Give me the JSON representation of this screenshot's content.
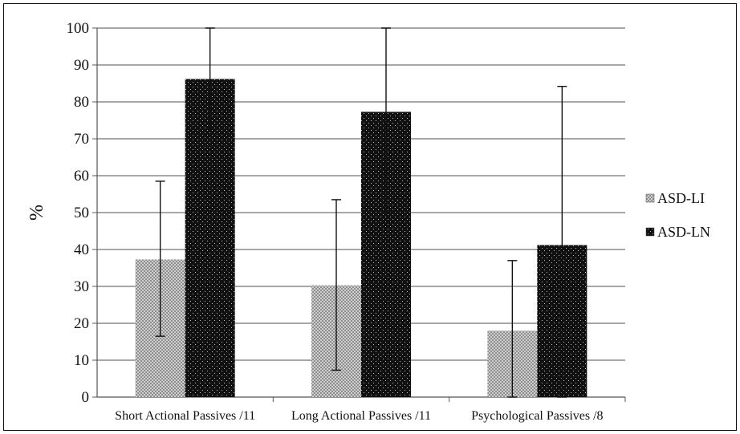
{
  "chart_data": {
    "type": "bar",
    "title": "",
    "xlabel": "",
    "ylabel": "%",
    "ylim": [
      0,
      100
    ],
    "yticks": [
      0,
      10,
      20,
      30,
      40,
      50,
      60,
      70,
      80,
      90,
      100
    ],
    "grid": true,
    "legend_position": "right",
    "categories": [
      "Short Actional Passives /11",
      "Long Actional Passives /11",
      "Psychological Passives /8"
    ],
    "series": [
      {
        "name": "ASD-LI",
        "color": "#9a9a9a",
        "values": [
          37.3,
          30.3,
          18.0
        ],
        "error_low": [
          16.5,
          7.3,
          0
        ],
        "error_high": [
          58.5,
          53.5,
          37.0
        ]
      },
      {
        "name": "ASD-LN",
        "color": "#111111",
        "values": [
          86.2,
          77.3,
          41.2
        ],
        "error_low": [
          72.0,
          50.0,
          0
        ],
        "error_high": [
          100,
          100,
          84.2
        ]
      }
    ]
  }
}
